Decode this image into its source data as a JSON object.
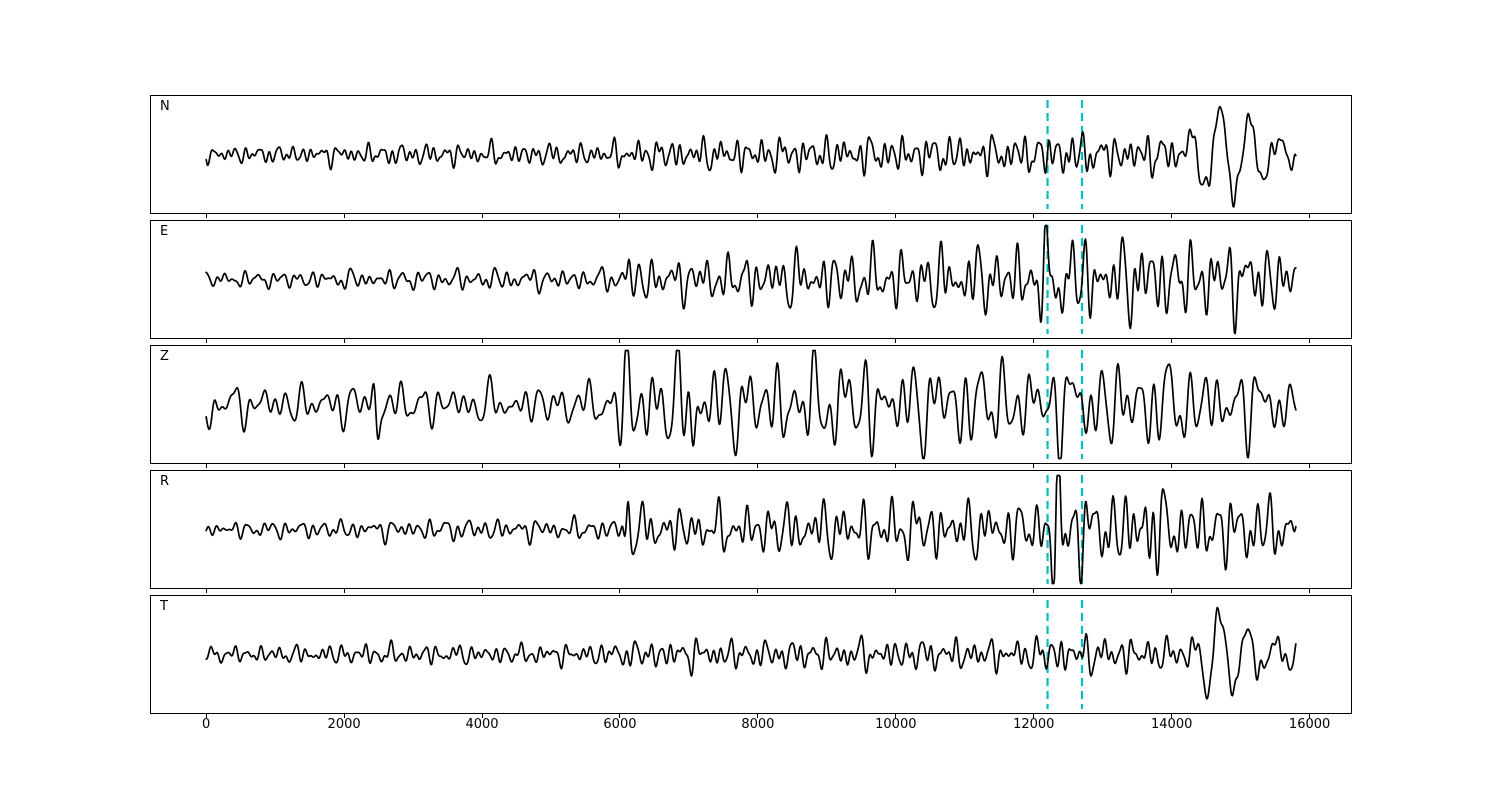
{
  "figure": {
    "background": "#ffffff",
    "trace_color": "#000000",
    "border_color": "#000000"
  },
  "chart_data": {
    "type": "line",
    "title": "",
    "xlabel": "",
    "ylabel": "",
    "grid": false,
    "legend": "none",
    "xlim": [
      -800,
      16600
    ],
    "x_start": 0,
    "x_end": 15800,
    "xticks": [
      0,
      2000,
      4000,
      6000,
      8000,
      10000,
      12000,
      14000,
      16000
    ],
    "xtick_labels": [
      "0",
      "2000",
      "4000",
      "6000",
      "8000",
      "10000",
      "12000",
      "14000",
      "16000"
    ],
    "trace_color": "#000000",
    "pick_lines": {
      "x": [
        12200,
        12700
      ],
      "color": "#00bfbf",
      "style": "dashed",
      "width": 2.2
    },
    "panels": [
      {
        "label": "N",
        "seed": 11,
        "period_scale": 0.85,
        "envelope": [
          [
            0,
            5
          ],
          [
            1500,
            6
          ],
          [
            3000,
            7
          ],
          [
            5600,
            7
          ],
          [
            6100,
            9
          ],
          [
            7000,
            10
          ],
          [
            8500,
            11
          ],
          [
            10000,
            12
          ],
          [
            11500,
            12
          ],
          [
            12150,
            13
          ],
          [
            12450,
            15
          ],
          [
            13000,
            12
          ],
          [
            13800,
            13
          ],
          [
            14200,
            9
          ],
          [
            14800,
            8
          ],
          [
            15800,
            7
          ]
        ],
        "lf": {
          "period": 430,
          "envelope": [
            [
              14100,
              0
            ],
            [
              14400,
              30
            ],
            [
              14650,
              48
            ],
            [
              15000,
              38
            ],
            [
              15300,
              24
            ],
            [
              15600,
              13
            ],
            [
              15800,
              9
            ]
          ]
        },
        "spikes": []
      },
      {
        "label": "E",
        "seed": 22,
        "period_scale": 1.0,
        "envelope": [
          [
            0,
            5
          ],
          [
            2000,
            6
          ],
          [
            4000,
            7
          ],
          [
            5700,
            7
          ],
          [
            6000,
            8
          ],
          [
            6100,
            26
          ],
          [
            6250,
            13
          ],
          [
            6900,
            14
          ],
          [
            7800,
            16
          ],
          [
            8800,
            18
          ],
          [
            9800,
            19
          ],
          [
            10900,
            21
          ],
          [
            11900,
            22
          ],
          [
            12250,
            36
          ],
          [
            12500,
            40
          ],
          [
            12750,
            26
          ],
          [
            13200,
            23
          ],
          [
            13600,
            31
          ],
          [
            13900,
            23
          ],
          [
            14500,
            25
          ],
          [
            15100,
            25
          ],
          [
            15500,
            21
          ],
          [
            15800,
            17
          ]
        ],
        "lf": {
          "period": 0,
          "envelope": []
        },
        "spikes": [
          {
            "x": 6120,
            "a": 26,
            "w": 80,
            "p": 130
          },
          {
            "x": 12400,
            "a": 30,
            "w": 120,
            "p": 150
          }
        ]
      },
      {
        "label": "Z",
        "seed": 33,
        "period_scale": 1.3,
        "envelope": [
          [
            0,
            12
          ],
          [
            800,
            13
          ],
          [
            1600,
            13
          ],
          [
            2350,
            14
          ],
          [
            2480,
            20
          ],
          [
            2650,
            14
          ],
          [
            3600,
            13
          ],
          [
            5000,
            13
          ],
          [
            5800,
            14
          ],
          [
            6050,
            36
          ],
          [
            6300,
            30
          ],
          [
            7000,
            32
          ],
          [
            7800,
            26
          ],
          [
            8700,
            30
          ],
          [
            9400,
            32
          ],
          [
            10300,
            28
          ],
          [
            11100,
            30
          ],
          [
            11900,
            26
          ],
          [
            12400,
            30
          ],
          [
            12900,
            28
          ],
          [
            13600,
            30
          ],
          [
            14300,
            26
          ],
          [
            15100,
            25
          ],
          [
            15800,
            20
          ]
        ],
        "lf": {
          "period": 0,
          "envelope": []
        },
        "spikes": [
          {
            "x": 70,
            "a": -24,
            "w": 70,
            "p": 260
          },
          {
            "x": 2480,
            "a": -22,
            "w": 60,
            "p": 160
          },
          {
            "x": 6120,
            "a": 24,
            "w": 90,
            "p": 170
          },
          {
            "x": 7060,
            "a": -28,
            "w": 70,
            "p": 200
          }
        ]
      },
      {
        "label": "R",
        "seed": 44,
        "period_scale": 1.0,
        "envelope": [
          [
            0,
            5
          ],
          [
            1800,
            6
          ],
          [
            3500,
            7
          ],
          [
            5700,
            7
          ],
          [
            6000,
            8
          ],
          [
            6090,
            30
          ],
          [
            6220,
            15
          ],
          [
            6900,
            14
          ],
          [
            8000,
            16
          ],
          [
            9100,
            18
          ],
          [
            10100,
            19
          ],
          [
            11100,
            18
          ],
          [
            12050,
            18
          ],
          [
            12280,
            42
          ],
          [
            12480,
            46
          ],
          [
            12720,
            26
          ],
          [
            13200,
            22
          ],
          [
            13620,
            32
          ],
          [
            13950,
            22
          ],
          [
            14700,
            22
          ],
          [
            15300,
            22
          ],
          [
            15800,
            17
          ]
        ],
        "lf": {
          "period": 0,
          "envelope": []
        },
        "spikes": [
          {
            "x": 6110,
            "a": 30,
            "w": 70,
            "p": 120
          },
          {
            "x": 12370,
            "a": 36,
            "w": 110,
            "p": 140
          },
          {
            "x": 13620,
            "a": 22,
            "w": 80,
            "p": 150
          }
        ]
      },
      {
        "label": "T",
        "seed": 55,
        "period_scale": 0.9,
        "envelope": [
          [
            0,
            5
          ],
          [
            1800,
            6
          ],
          [
            2400,
            7
          ],
          [
            4000,
            6
          ],
          [
            5700,
            7
          ],
          [
            6300,
            9
          ],
          [
            7100,
            10
          ],
          [
            8000,
            9
          ],
          [
            9200,
            10
          ],
          [
            10600,
            10
          ],
          [
            11900,
            10
          ],
          [
            12300,
            13
          ],
          [
            12700,
            12
          ],
          [
            13500,
            11
          ],
          [
            14100,
            10
          ],
          [
            14500,
            8
          ],
          [
            14900,
            7
          ],
          [
            15500,
            9
          ],
          [
            15800,
            8
          ]
        ],
        "lf": {
          "period": 400,
          "envelope": [
            [
              14250,
              0
            ],
            [
              14550,
              42
            ],
            [
              14800,
              46
            ],
            [
              15050,
              28
            ],
            [
              15350,
              22
            ],
            [
              15600,
              12
            ],
            [
              15800,
              8
            ]
          ]
        },
        "spikes": []
      }
    ]
  }
}
